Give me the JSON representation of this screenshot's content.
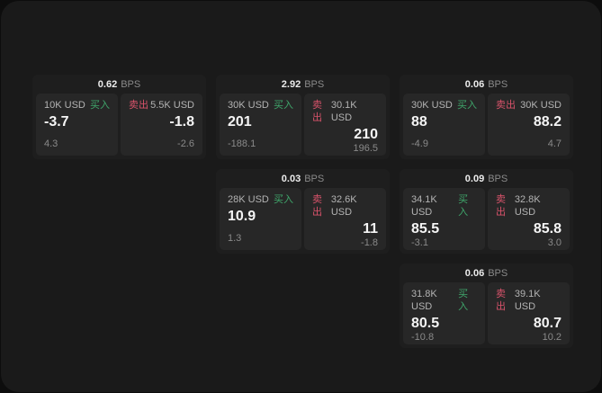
{
  "colors": {
    "page_bg": "#1a1a1a",
    "card_bg": "#1e1e1e",
    "panel_bg": "#272727",
    "buy": "#3fa66b",
    "sell": "#d9536b"
  },
  "labels": {
    "buy": "买入",
    "sell": "卖出",
    "bps": "BPS"
  },
  "cards": [
    {
      "spread": "0.62",
      "buy": {
        "amount": "10K USD",
        "price": "-3.7",
        "change": "4.3"
      },
      "sell": {
        "amount": "5.5K USD",
        "price": "-1.8",
        "change": "-2.6"
      }
    },
    {
      "spread": "2.92",
      "buy": {
        "amount": "30K USD",
        "price": "201",
        "change": "-188.1"
      },
      "sell": {
        "amount": "30.1K USD",
        "price": "210",
        "change": "196.5"
      }
    },
    {
      "spread": "0.06",
      "buy": {
        "amount": "30K USD",
        "price": "88",
        "change": "-4.9"
      },
      "sell": {
        "amount": "30K USD",
        "price": "88.2",
        "change": "4.7"
      }
    },
    {
      "spread": "0.03",
      "buy": {
        "amount": "28K USD",
        "price": "10.9",
        "change": "1.3"
      },
      "sell": {
        "amount": "32.6K USD",
        "price": "11",
        "change": "-1.8"
      }
    },
    {
      "spread": "0.09",
      "buy": {
        "amount": "34.1K USD",
        "price": "85.5",
        "change": "-3.1"
      },
      "sell": {
        "amount": "32.8K USD",
        "price": "85.8",
        "change": "3.0"
      }
    },
    {
      "spread": "0.06",
      "buy": {
        "amount": "31.8K USD",
        "price": "80.5",
        "change": "-10.8"
      },
      "sell": {
        "amount": "39.1K USD",
        "price": "80.7",
        "change": "10.2"
      }
    }
  ]
}
